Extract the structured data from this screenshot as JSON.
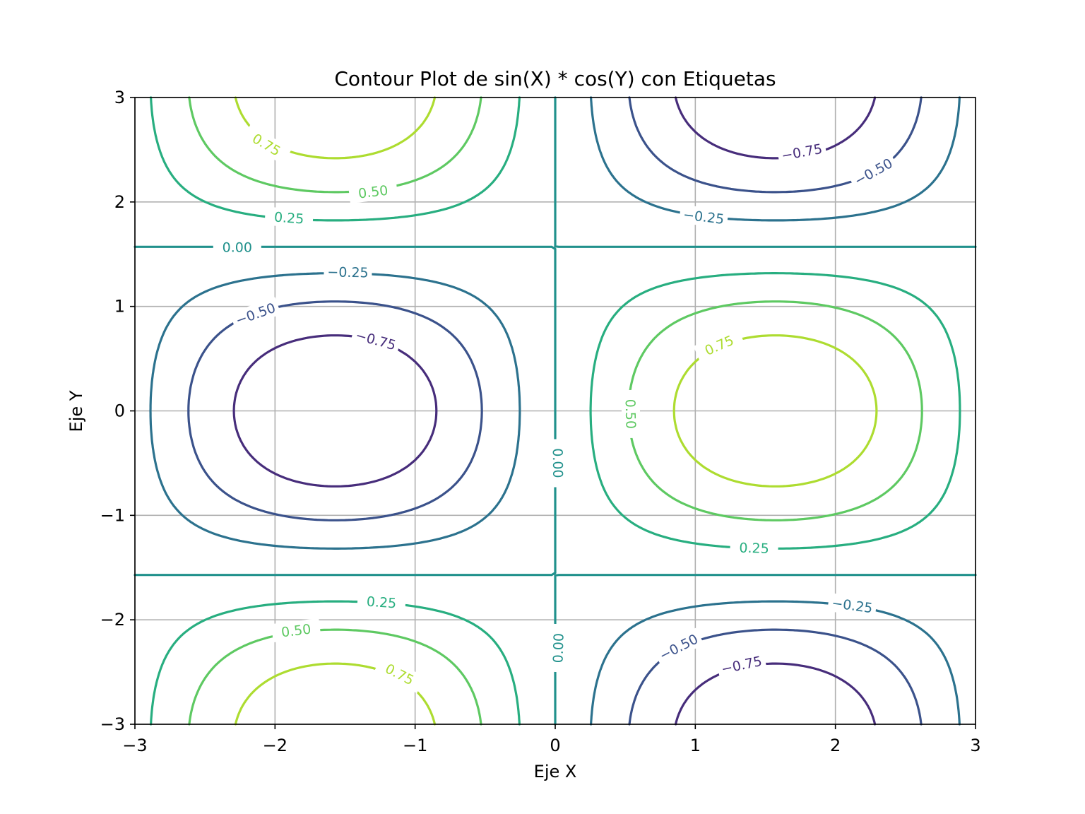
{
  "chart_data": {
    "type": "contour",
    "title": "Contour Plot de sin(X) * cos(Y) con Etiquetas",
    "xlabel": "Eje X",
    "ylabel": "Eje Y",
    "function": "sin(X) * cos(Y)",
    "xlim": [
      -3,
      3
    ],
    "ylim": [
      -3,
      3
    ],
    "xticks": [
      -3,
      -2,
      -1,
      0,
      1,
      2,
      3
    ],
    "yticks": [
      -3,
      -2,
      -1,
      0,
      1,
      2,
      3
    ],
    "xtick_labels": [
      "−3",
      "−2",
      "−1",
      "0",
      "1",
      "2",
      "3"
    ],
    "ytick_labels": [
      "−3",
      "−2",
      "−1",
      "0",
      "1",
      "2",
      "3"
    ],
    "grid": true,
    "levels": [
      {
        "value": -0.75,
        "label": "−0.75",
        "color": "#472d7b"
      },
      {
        "value": -0.5,
        "label": "−0.50",
        "color": "#3b528b"
      },
      {
        "value": -0.25,
        "label": "−0.25",
        "color": "#2c728e"
      },
      {
        "value": 0.0,
        "label": "0.00",
        "color": "#21918c"
      },
      {
        "value": 0.25,
        "label": "0.25",
        "color": "#28ae80"
      },
      {
        "value": 0.5,
        "label": "0.50",
        "color": "#5ec962"
      },
      {
        "value": 0.75,
        "label": "0.75",
        "color": "#addc30"
      }
    ],
    "contour_labels": [
      {
        "label": "0.75",
        "x": -2.06,
        "y": 2.55
      },
      {
        "label": "0.50",
        "x": -1.3,
        "y": 2.1
      },
      {
        "label": "0.25",
        "x": -1.9,
        "y": 1.85
      },
      {
        "label": "0.00",
        "x": -2.27,
        "y": 1.57
      },
      {
        "label": "−0.75",
        "x": 1.76,
        "y": 2.48
      },
      {
        "label": "−0.50",
        "x": 2.27,
        "y": 2.29
      },
      {
        "label": "−0.25",
        "x": 1.06,
        "y": 1.86
      },
      {
        "label": "−0.25",
        "x": -1.48,
        "y": 1.33
      },
      {
        "label": "−0.50",
        "x": -2.14,
        "y": 0.93
      },
      {
        "label": "−0.75",
        "x": -1.28,
        "y": 0.68
      },
      {
        "label": "0.75",
        "x": 1.17,
        "y": 0.63
      },
      {
        "label": "0.50",
        "x": 0.54,
        "y": -0.03
      },
      {
        "label": "0.00",
        "x": 0.02,
        "y": -0.5
      },
      {
        "label": "0.25",
        "x": 1.42,
        "y": -1.31
      },
      {
        "label": "0.25",
        "x": -1.24,
        "y": -1.83
      },
      {
        "label": "−0.25",
        "x": 2.12,
        "y": -1.86
      },
      {
        "label": "0.50",
        "x": -1.85,
        "y": -2.1
      },
      {
        "label": "0.00",
        "x": 0.02,
        "y": -2.27
      },
      {
        "label": "−0.50",
        "x": 0.88,
        "y": -2.26
      },
      {
        "label": "−0.75",
        "x": 1.33,
        "y": -2.43
      },
      {
        "label": "0.75",
        "x": -1.11,
        "y": -2.52
      }
    ]
  }
}
